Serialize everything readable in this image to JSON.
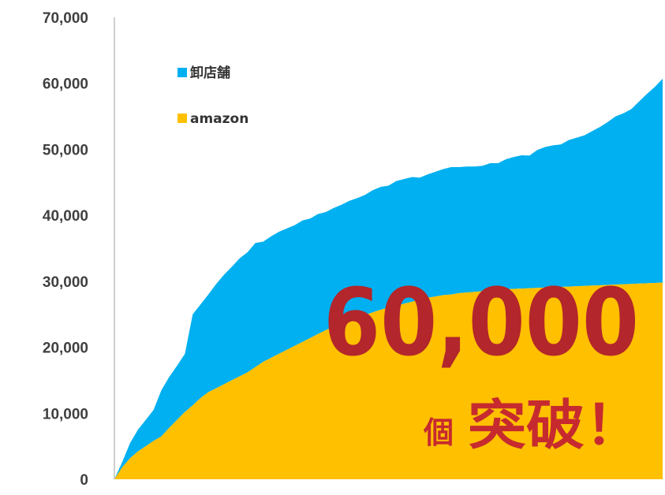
{
  "chart_data": {
    "type": "area",
    "stacked": true,
    "ylim": [
      0,
      70000
    ],
    "yticks": [
      "0",
      "10,000",
      "20,000",
      "30,000",
      "40,000",
      "50,000",
      "60,000",
      "70,000"
    ],
    "ytick_values": [
      0,
      10000,
      20000,
      30000,
      40000,
      50000,
      60000,
      70000
    ],
    "legend_position": "top-left",
    "x": [
      0,
      1,
      2,
      3,
      4,
      5,
      6,
      7,
      8,
      9,
      10,
      11,
      12,
      13,
      14,
      15,
      16,
      17,
      18,
      19,
      20,
      21,
      22,
      23,
      24,
      25,
      26,
      27,
      28,
      29,
      30,
      31,
      32,
      33,
      34,
      35,
      36,
      37,
      38,
      39,
      40,
      41,
      42,
      43,
      44,
      45,
      46,
      47,
      48,
      49,
      50,
      51,
      52,
      53,
      54,
      55,
      56,
      57,
      58,
      59,
      60,
      61,
      62,
      63,
      64,
      65,
      66,
      67,
      68,
      69,
      70
    ],
    "series": [
      {
        "name": "amazon",
        "color": "#ffc000",
        "values": [
          0,
          1800,
          3200,
          4200,
          5000,
          5800,
          6500,
          7800,
          9000,
          10200,
          11200,
          12300,
          13200,
          13800,
          14400,
          15000,
          15600,
          16200,
          17000,
          17800,
          18400,
          19000,
          19600,
          20200,
          20800,
          21400,
          22000,
          22600,
          23100,
          23600,
          24100,
          24500,
          24900,
          25300,
          25700,
          26000,
          26300,
          26600,
          26900,
          27200,
          27500,
          27700,
          27900,
          28000,
          28200,
          28300,
          28400,
          28500,
          28600,
          28700,
          28800,
          28850,
          28900,
          28950,
          29000,
          29050,
          29100,
          29150,
          29200,
          29250,
          29300,
          29350,
          29400,
          29450,
          29500,
          29550,
          29600,
          29650,
          29700,
          29750,
          29800
        ]
      },
      {
        "name": "卸店舗",
        "color": "#00b0f0",
        "values": [
          0,
          800,
          2300,
          3300,
          4000,
          4700,
          7000,
          7700,
          8200,
          8800,
          13800,
          14200,
          14800,
          15800,
          16600,
          17200,
          17900,
          18200,
          18800,
          18200,
          18400,
          18500,
          18400,
          18300,
          18400,
          18100,
          18200,
          17900,
          18000,
          18000,
          18100,
          18100,
          18200,
          18500,
          18600,
          18500,
          18900,
          18900,
          18900,
          18500,
          18700,
          18900,
          19100,
          19300,
          19100,
          19100,
          19000,
          19000,
          19300,
          19200,
          19700,
          20000,
          20200,
          20100,
          20900,
          21300,
          21500,
          21600,
          22200,
          22500,
          22800,
          23400,
          24000,
          24700,
          25500,
          25900,
          26500,
          27600,
          28700,
          29700,
          30900
        ]
      }
    ]
  },
  "callout": {
    "number": "60,000",
    "unit": "個",
    "text": "突破！"
  }
}
